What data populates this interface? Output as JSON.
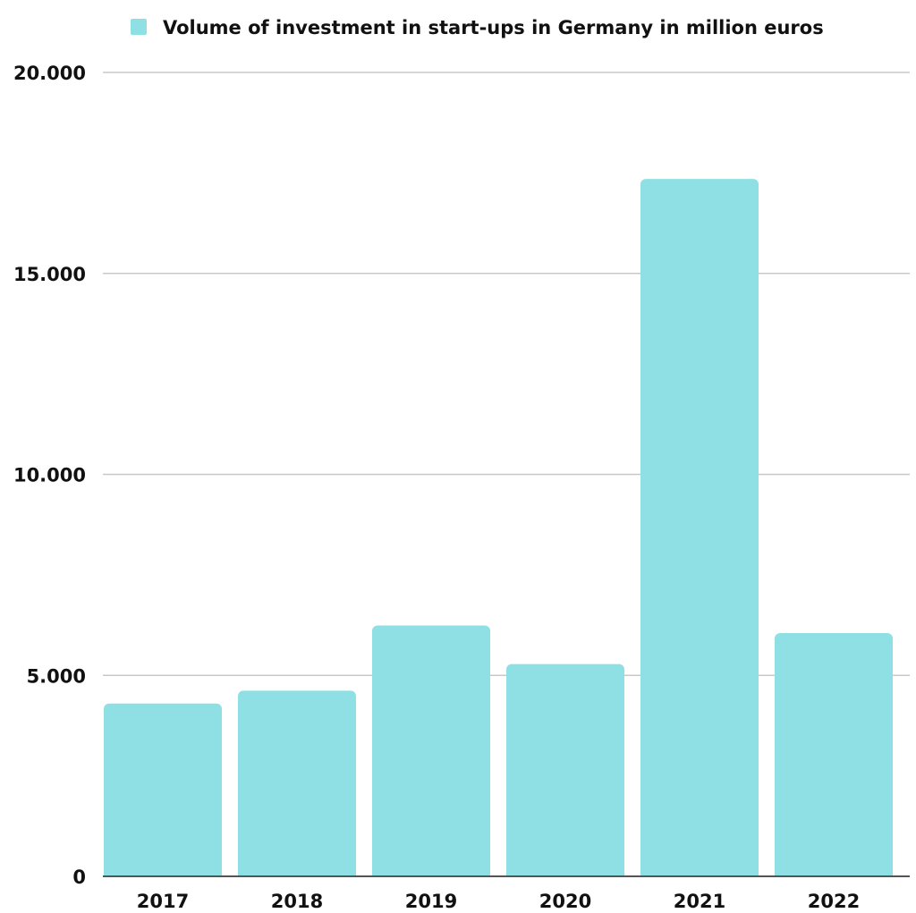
{
  "chart_data": {
    "type": "bar",
    "categories": [
      "2017",
      "2018",
      "2019",
      "2020",
      "2021",
      "2022"
    ],
    "series": [
      {
        "name": "Volume of investment in start-ups in Germany in million euros",
        "values": [
          4300,
          4620,
          6240,
          5280,
          17350,
          6050
        ]
      }
    ],
    "ylim": [
      0,
      20000
    ],
    "yticks": [
      0,
      5000,
      10000,
      15000,
      20000
    ],
    "ytick_labels": [
      "0",
      "5.000",
      "10.000",
      "15.000",
      "20.000"
    ],
    "grid": true,
    "legend_position": "top-center",
    "colors": {
      "bar": "#8ee0e5",
      "grid": "#c8c8c8",
      "axis": "#555555",
      "text": "#111111"
    }
  }
}
